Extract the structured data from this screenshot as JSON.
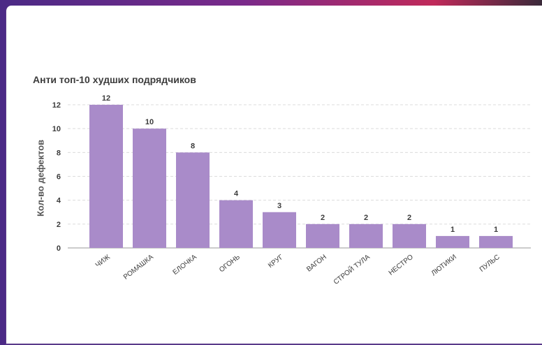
{
  "colors": {
    "bar": "#a98bc9",
    "grid": "#dcdcdc",
    "axis": "#9a9a9a",
    "text": "#3c3c3c"
  },
  "chart_data": {
    "type": "bar",
    "title": "Анти топ-10 худших подрядчиков",
    "xlabel": "",
    "ylabel": "Кол-во дефектов",
    "categories": [
      "ЧИЖ",
      "РОМАШКА",
      "ЕЛОЧКА",
      "ОГОНЬ",
      "КРУГ",
      "ВАГОН",
      "СТРОЙ ТУЛА",
      "НЕСТРО",
      "ЛЮТИКИ",
      "ПУЛЬС"
    ],
    "values": [
      12,
      10,
      8,
      4,
      3,
      2,
      2,
      2,
      1,
      1
    ],
    "ylim": [
      0,
      12
    ],
    "yticks": [
      0,
      2,
      4,
      6,
      8,
      10,
      12
    ],
    "grid": true,
    "legend": "none"
  }
}
